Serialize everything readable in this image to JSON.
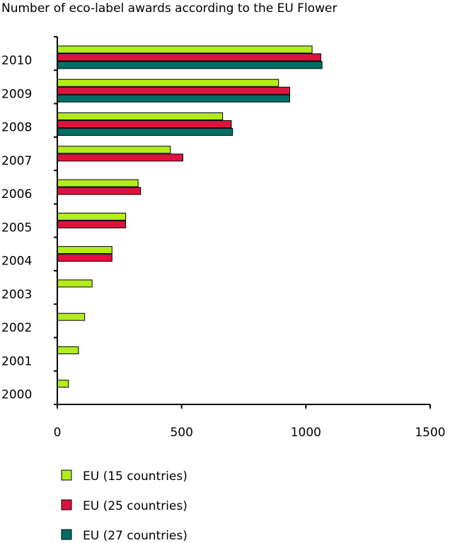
{
  "chart_data": {
    "type": "bar",
    "orientation": "horizontal",
    "title": "Number of eco-label awards according to the EU Flower",
    "xlabel": "",
    "ylabel": "",
    "xlim": [
      0,
      1500
    ],
    "x_ticks": [
      0,
      500,
      1000,
      1500
    ],
    "categories": [
      "2010",
      "2009",
      "2008",
      "2007",
      "2006",
      "2005",
      "2004",
      "2003",
      "2002",
      "2001",
      "2000"
    ],
    "series": [
      {
        "name": "EU (15 countries)",
        "color": "#b3ec1e",
        "values": [
          1025,
          890,
          665,
          455,
          325,
          275,
          220,
          140,
          110,
          85,
          45
        ]
      },
      {
        "name": "EU (25 countries)",
        "color": "#dc143c",
        "values": [
          1060,
          935,
          700,
          505,
          335,
          275,
          220,
          null,
          null,
          null,
          null
        ]
      },
      {
        "name": "EU (27 countries)",
        "color": "#006e64",
        "values": [
          1065,
          935,
          705,
          null,
          null,
          null,
          null,
          null,
          null,
          null,
          null
        ]
      }
    ],
    "grid": false,
    "legend_position": "bottom-left"
  }
}
